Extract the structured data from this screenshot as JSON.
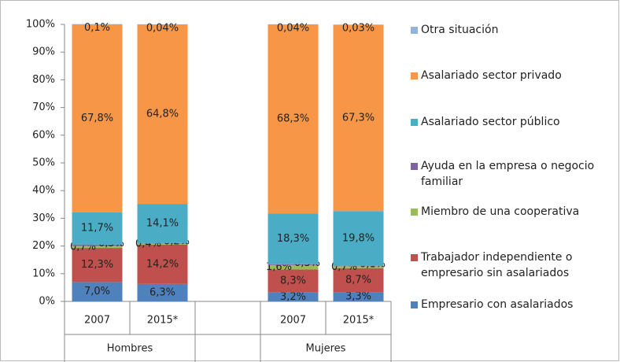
{
  "chart_data": {
    "type": "stacked-bar",
    "categories": [
      "2007",
      "2015*",
      null,
      "2007",
      "2015*"
    ],
    "groups": [
      "Hombres",
      "Mujeres"
    ],
    "ylim": [
      0,
      100
    ],
    "yticks": [
      {
        "value": 0,
        "label": "0%"
      },
      {
        "value": 10,
        "label": "10%"
      },
      {
        "value": 20,
        "label": "20%"
      },
      {
        "value": 30,
        "label": "30%"
      },
      {
        "value": 40,
        "label": "40%"
      },
      {
        "value": 50,
        "label": "50%"
      },
      {
        "value": 60,
        "label": "60%"
      },
      {
        "value": 70,
        "label": "70%"
      },
      {
        "value": 80,
        "label": "80%"
      },
      {
        "value": 90,
        "label": "90%"
      },
      {
        "value": 100,
        "label": "100%"
      }
    ],
    "series": [
      {
        "name": "Empresario con asalariados",
        "color": "#4f81bd",
        "values": [
          7.0,
          6.3,
          null,
          3.2,
          3.3
        ],
        "value_labels": [
          "7,0%",
          "6,3%",
          null,
          "3,2%",
          "3,3%"
        ]
      },
      {
        "name": "Trabajador independiente o empresario sin asalariados",
        "color": "#c0504d",
        "values": [
          12.3,
          14.2,
          null,
          8.3,
          8.7
        ],
        "value_labels": [
          "12,3%",
          "14,2%",
          null,
          "8,3%",
          "8,7%"
        ]
      },
      {
        "name": "Miembro de una cooperativa",
        "color": "#9bbb59",
        "values": [
          0.7,
          0.4,
          null,
          1.6,
          0.7
        ],
        "value_labels": [
          "0,7%",
          "0,4%",
          null,
          "1,6%",
          "0,7%"
        ]
      },
      {
        "name": "Ayuda en la empresa o negocio familiar",
        "color": "#8064a2",
        "values": [
          0.5,
          0.2,
          null,
          0.3,
          0.1
        ],
        "value_labels": [
          "0,5%",
          "0,2%",
          null,
          "0,3%",
          "0,1%"
        ]
      },
      {
        "name": "Asalariado sector público",
        "color": "#4bacc6",
        "values": [
          11.7,
          14.1,
          null,
          18.3,
          19.8
        ],
        "value_labels": [
          "11,7%",
          "14,1%",
          null,
          "18,3%",
          "19,8%"
        ]
      },
      {
        "name": "Asalariado sector privado",
        "color": "#f79646",
        "values": [
          67.8,
          64.8,
          null,
          68.3,
          67.3
        ],
        "value_labels": [
          "67,8%",
          "64,8%",
          null,
          "68,3%",
          "67,3%"
        ]
      },
      {
        "name": "Otra situación",
        "color": "#95b3d7",
        "values": [
          0.1,
          0.04,
          null,
          0.04,
          0.03
        ],
        "value_labels": [
          "0,1%",
          "0,04%",
          null,
          "0,04%",
          "0,03%"
        ]
      }
    ]
  }
}
